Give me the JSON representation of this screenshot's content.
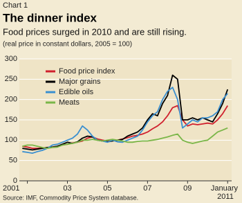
{
  "chart_data": {
    "type": "line",
    "label": "Chart 1",
    "title": "The dinner index",
    "subtitle": "Food prices surged in 2010 and are still rising.",
    "note": "(real price in constant dollars, 2005 = 100)",
    "source": "Source: IMF, Commodity Price System database.",
    "x": [
      2000.75,
      2001,
      2001.25,
      2001.5,
      2001.75,
      2002,
      2002.25,
      2002.5,
      2002.75,
      2003,
      2003.25,
      2003.5,
      2003.75,
      2004,
      2004.25,
      2004.5,
      2004.75,
      2005,
      2005.25,
      2005.5,
      2005.75,
      2006,
      2006.25,
      2006.5,
      2006.75,
      2007,
      2007.25,
      2007.5,
      2007.75,
      2008,
      2008.25,
      2008.5,
      2008.75,
      2009,
      2009.25,
      2009.5,
      2009.75,
      2010,
      2010.25,
      2010.5,
      2010.75,
      2011
    ],
    "series": [
      {
        "name": "Food price index",
        "color": "#d0202e",
        "values": [
          85,
          83,
          80,
          80,
          81,
          82,
          83,
          85,
          88,
          90,
          93,
          95,
          98,
          105,
          108,
          103,
          100,
          98,
          100,
          100,
          103,
          106,
          110,
          112,
          115,
          120,
          128,
          135,
          145,
          160,
          180,
          185,
          150,
          135,
          140,
          138,
          140,
          142,
          140,
          150,
          165,
          185
        ]
      },
      {
        "name": "Major grains",
        "color": "#000000",
        "values": [
          80,
          78,
          76,
          78,
          80,
          82,
          83,
          85,
          90,
          95,
          92,
          96,
          105,
          110,
          108,
          100,
          98,
          96,
          98,
          100,
          102,
          110,
          115,
          120,
          130,
          150,
          165,
          160,
          190,
          210,
          260,
          250,
          150,
          150,
          155,
          150,
          155,
          150,
          145,
          165,
          190,
          225
        ]
      },
      {
        "name": "Edible oils",
        "color": "#3a8fd0",
        "values": [
          72,
          70,
          68,
          72,
          75,
          80,
          88,
          90,
          95,
          100,
          105,
          115,
          135,
          125,
          110,
          100,
          98,
          95,
          100,
          96,
          95,
          100,
          105,
          110,
          125,
          145,
          160,
          170,
          200,
          220,
          230,
          200,
          130,
          140,
          150,
          145,
          155,
          155,
          160,
          170,
          200,
          215
        ]
      },
      {
        "name": "Meats",
        "color": "#7ab648",
        "values": [
          85,
          88,
          88,
          85,
          82,
          80,
          82,
          83,
          88,
          90,
          92,
          95,
          100,
          100,
          102,
          100,
          98,
          100,
          102,
          100,
          98,
          95,
          95,
          97,
          98,
          98,
          100,
          102,
          105,
          108,
          112,
          115,
          100,
          95,
          92,
          95,
          98,
          100,
          110,
          120,
          125,
          130
        ]
      }
    ],
    "xlim": [
      2000.6,
      2011.2
    ],
    "xticks": [
      {
        "value": 2001,
        "label": "2001"
      },
      {
        "value": 2003,
        "label": "03"
      },
      {
        "value": 2005,
        "label": "05"
      },
      {
        "value": 2007,
        "label": "07"
      },
      {
        "value": 2009,
        "label": "09"
      },
      {
        "value": 2011,
        "label": "January 2011"
      }
    ],
    "ylim": [
      0,
      300
    ],
    "yticks": [
      0,
      50,
      100,
      150,
      200,
      250,
      300
    ],
    "grid": true,
    "legend": "upper left"
  }
}
